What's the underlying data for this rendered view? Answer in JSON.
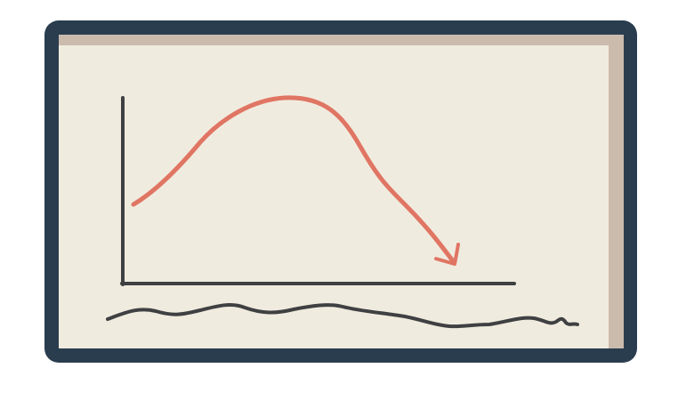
{
  "diagram": {
    "kind": "hand-drawn curve sketch on a framed board",
    "colors": {
      "frame": "#2a3d4f",
      "board_shadow": "#cbbbad",
      "board_surface": "#f0ebdf",
      "axis": "#3f4042",
      "curve": "#e07563",
      "scribble": "#3f4042"
    },
    "icons": [
      "arrowhead-icon"
    ]
  }
}
